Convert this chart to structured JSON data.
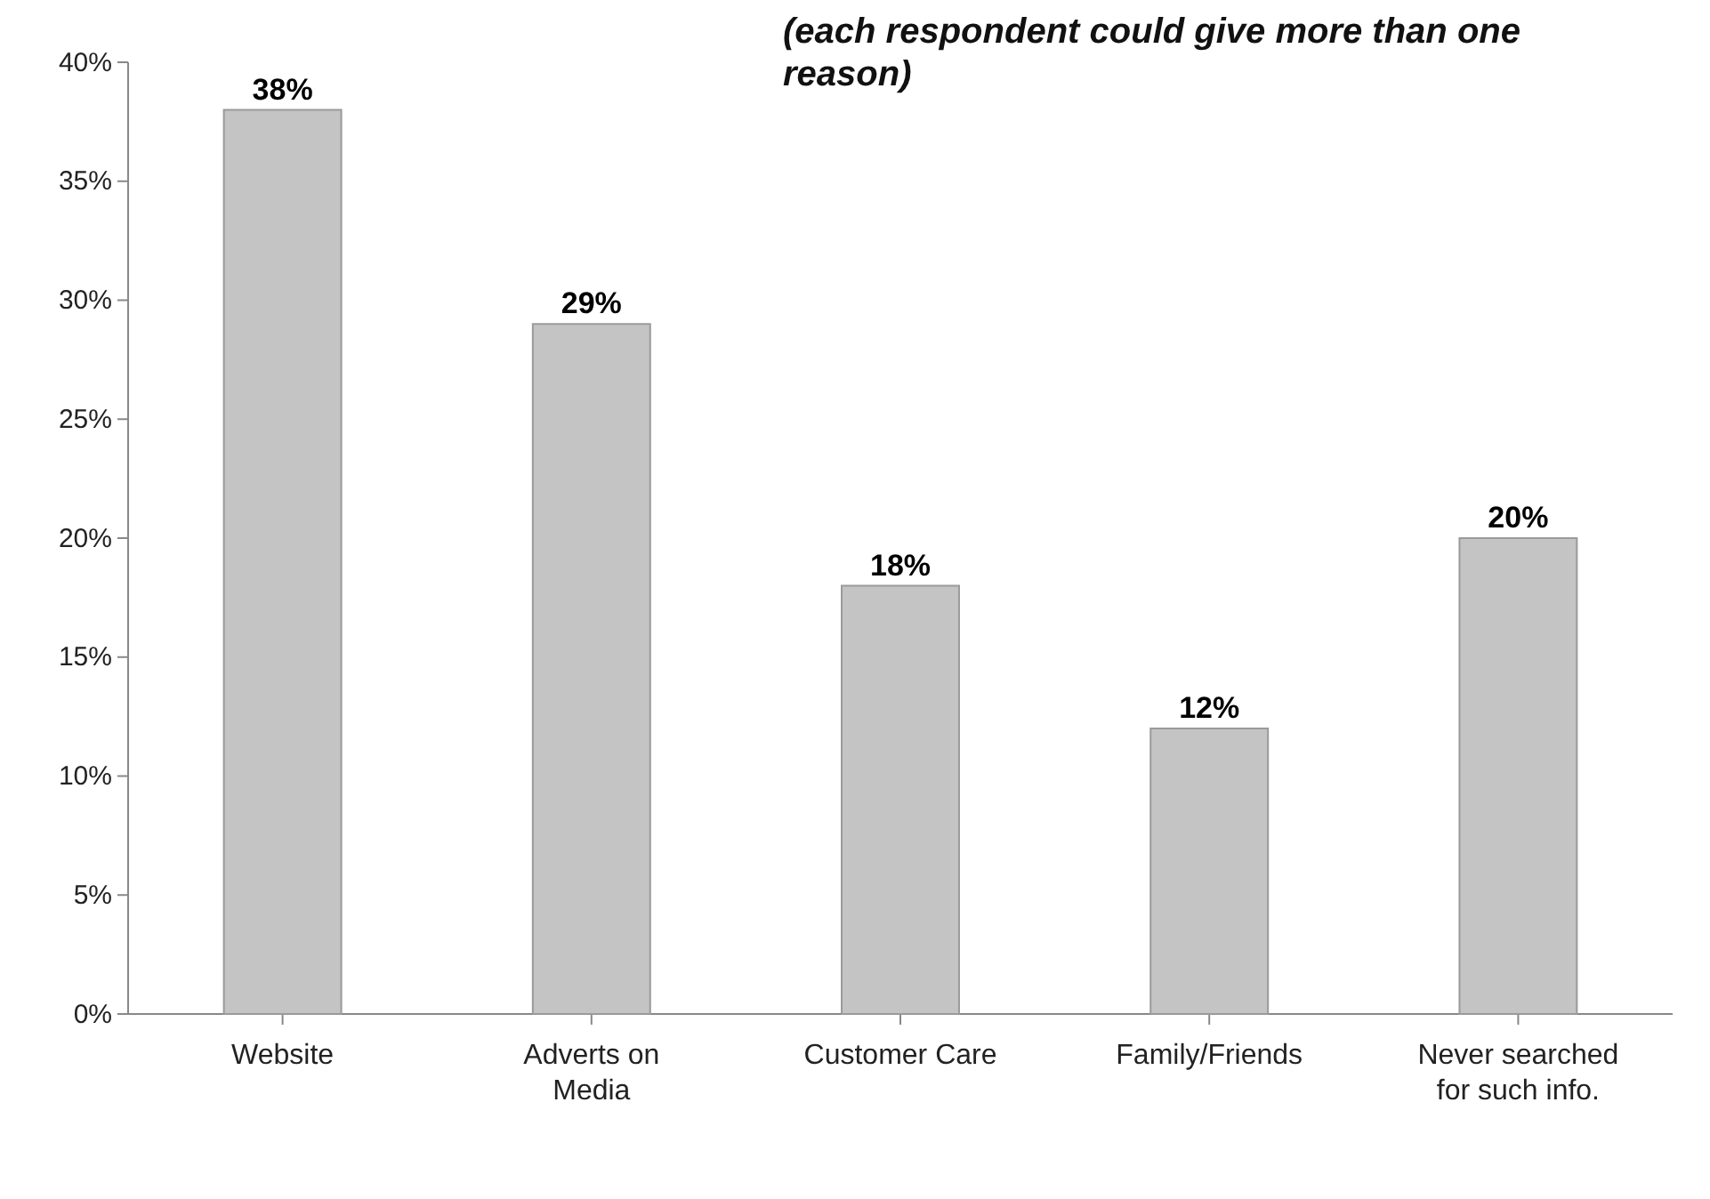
{
  "chart_data": {
    "type": "bar",
    "annotations": [
      "(each respondent could give more than one reason)"
    ],
    "categories": [
      "Website",
      "Adverts on Media",
      "Customer Care",
      "Family/Friends",
      "Never searched for such info."
    ],
    "values": [
      38,
      29,
      18,
      12,
      20
    ],
    "value_labels": [
      "38%",
      "29%",
      "18%",
      "12%",
      "20%"
    ],
    "color": "#c4c4c4",
    "ylim": [
      0,
      40
    ],
    "yticks": [
      {
        "value": 0,
        "label": "0%"
      },
      {
        "value": 5,
        "label": "5%"
      },
      {
        "value": 10,
        "label": "10%"
      },
      {
        "value": 15,
        "label": "15%"
      },
      {
        "value": 20,
        "label": "20%"
      },
      {
        "value": 25,
        "label": "25%"
      },
      {
        "value": 30,
        "label": "30%"
      },
      {
        "value": 35,
        "label": "35%"
      },
      {
        "value": 40,
        "label": "40%"
      }
    ],
    "grid": false
  }
}
